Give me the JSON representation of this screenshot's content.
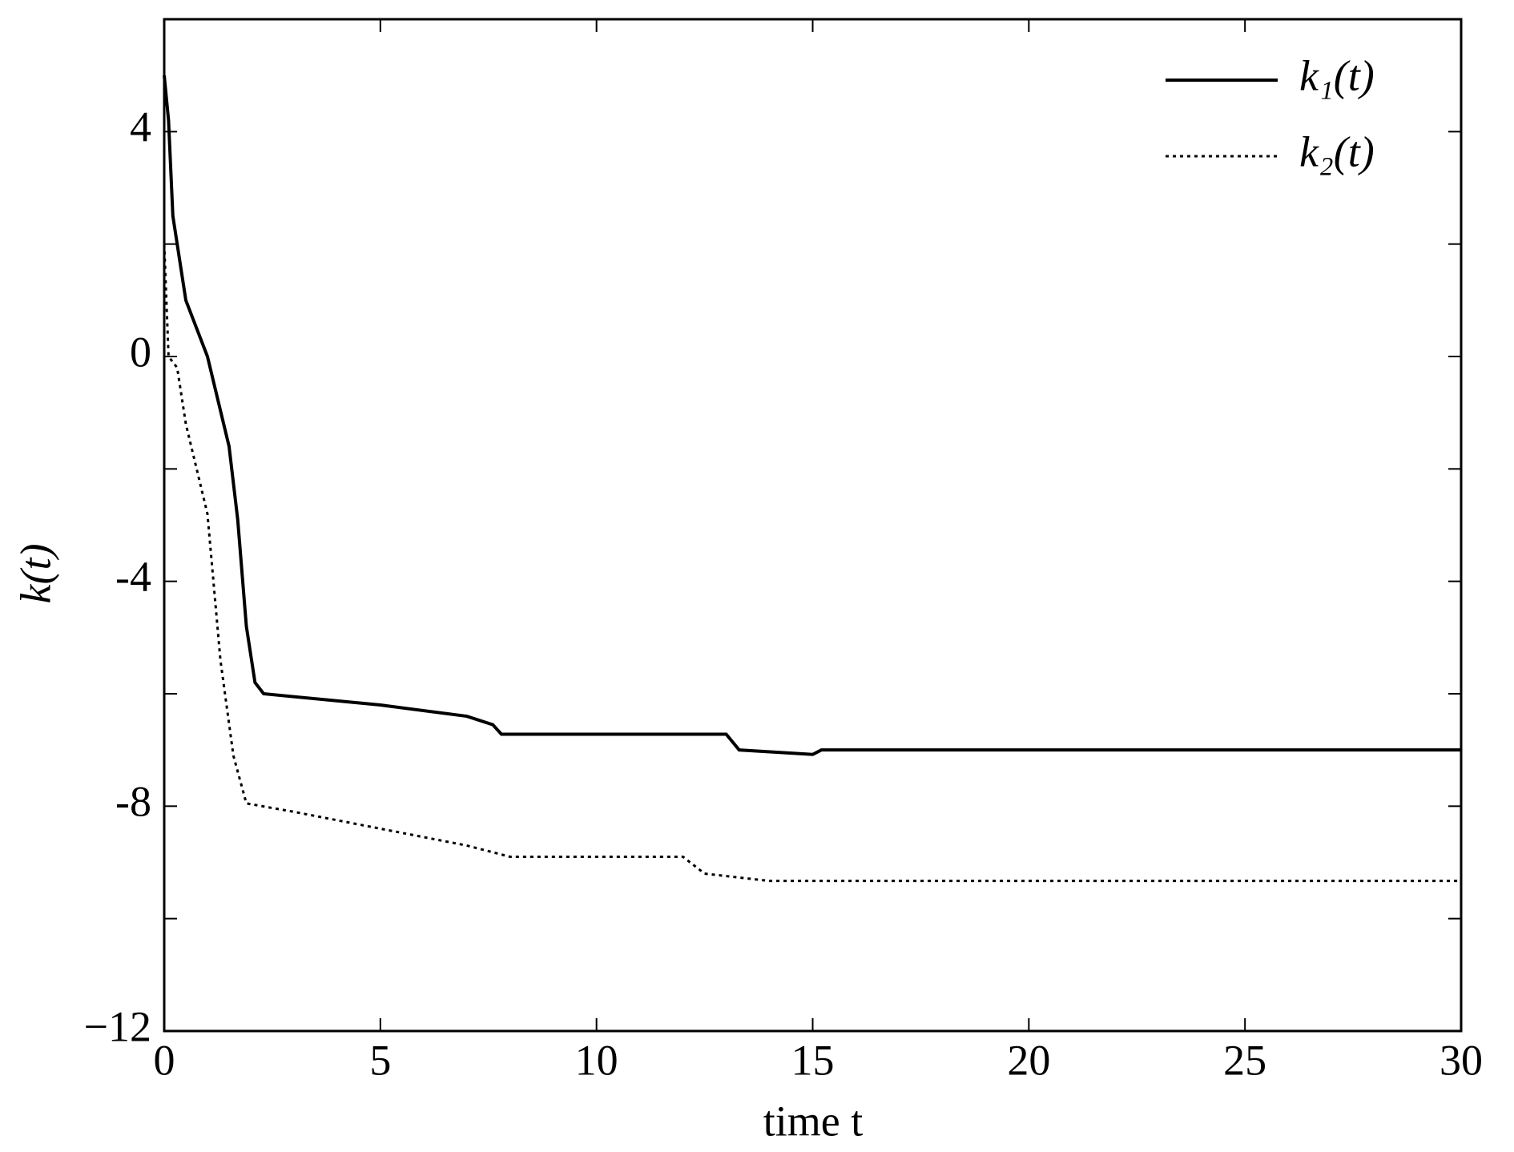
{
  "chart_data": {
    "type": "line",
    "x_label": "time t",
    "y_label": "k(t)",
    "xlim": [
      0,
      30
    ],
    "ylim": [
      -12,
      6
    ],
    "xticks": [
      0,
      5,
      10,
      15,
      20,
      25,
      30
    ],
    "yticks": [
      {
        "value": -12,
        "label": "−12"
      },
      -8,
      -4,
      0,
      4
    ],
    "minor_yticks": [
      -10,
      -6,
      -2,
      2
    ],
    "legend": "upper right",
    "series": [
      {
        "name": "k₁(t)",
        "color": "#000000",
        "style": "solid",
        "x": [
          0,
          0.1,
          0.2,
          0.5,
          1,
          1.5,
          1.7,
          1.9,
          2.1,
          2.3,
          5,
          7,
          7.6,
          7.8,
          13,
          13.3,
          15,
          15.2,
          30
        ],
        "values": [
          5,
          4.2,
          2.5,
          1,
          0,
          -1.6,
          -2.9,
          -4.8,
          -5.8,
          -6,
          -6.2,
          -6.4,
          -6.55,
          -6.72,
          -6.72,
          -7,
          -7.08,
          -7,
          -7
        ]
      },
      {
        "name": "k₂(t)",
        "color": "#000000",
        "style": "dotted",
        "x": [
          0,
          0.1,
          0.3,
          0.5,
          1,
          1.3,
          1.6,
          1.9,
          3,
          5,
          7,
          8,
          12,
          12.5,
          14,
          30
        ],
        "values": [
          2,
          0,
          -0.2,
          -1.2,
          -2.8,
          -5.4,
          -7.1,
          -7.95,
          -8.1,
          -8.4,
          -8.7,
          -8.9,
          -8.9,
          -9.2,
          -9.33,
          -9.33
        ]
      }
    ]
  }
}
